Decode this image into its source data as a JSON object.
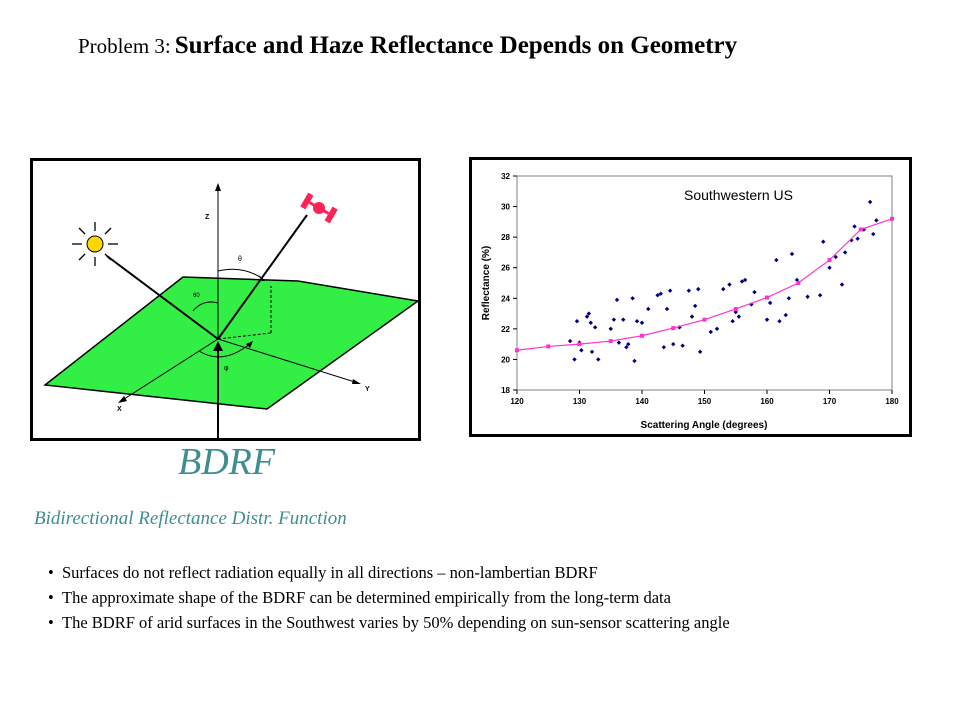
{
  "title": {
    "prefix": "Problem 3:",
    "main": "Surface and Haze Reflectance Depends on Geometry"
  },
  "diagram": {
    "axis_labels": {
      "z": "Z",
      "x": "X",
      "y": "Y"
    },
    "angle_labels": {
      "theta": "θ",
      "theta0": "θ0",
      "phi": "φ"
    },
    "colors": {
      "surface": "#33ee44",
      "sun": "#ffd700",
      "satellite": "#ff2255"
    },
    "icons": [
      "sun-icon",
      "satellite-icon"
    ]
  },
  "bdrf_label": "BDRF",
  "bdrf_subtitle": "Bidirectional Reflectance Distr. Function",
  "bullets": [
    "Surfaces do not reflect radiation equally in all directions – non-lambertian BDRF",
    "The approximate shape of the BDRF can be determined empirically from the long-term data",
    "The BDRF of arid surfaces in the Southwest varies by 50% depending on sun-sensor scattering angle"
  ],
  "chart_data": {
    "type": "scatter",
    "title": "Southwestern US",
    "xlabel": "Scattering Angle (degrees)",
    "ylabel": "Reflectance (%)",
    "xlim": [
      120,
      180
    ],
    "ylim": [
      18,
      32
    ],
    "xticks": [
      120,
      130,
      140,
      150,
      160,
      170,
      180
    ],
    "yticks": [
      18,
      20,
      22,
      24,
      26,
      28,
      30,
      32
    ],
    "grid": false,
    "legend": "none",
    "series": [
      {
        "kind": "scatter",
        "color": "#000080",
        "points": [
          [
            128.5,
            21.2
          ],
          [
            129.2,
            20.0
          ],
          [
            129.6,
            22.5
          ],
          [
            130.0,
            21.1
          ],
          [
            130.3,
            20.6
          ],
          [
            131.2,
            22.8
          ],
          [
            131.5,
            23.0
          ],
          [
            131.8,
            22.4
          ],
          [
            132.0,
            20.5
          ],
          [
            132.5,
            22.1
          ],
          [
            133.0,
            20.0
          ],
          [
            135.0,
            22.0
          ],
          [
            135.5,
            22.6
          ],
          [
            136.0,
            23.9
          ],
          [
            136.3,
            21.1
          ],
          [
            137.0,
            22.6
          ],
          [
            137.5,
            20.8
          ],
          [
            137.8,
            21.0
          ],
          [
            138.5,
            24.0
          ],
          [
            138.8,
            19.9
          ],
          [
            139.2,
            22.5
          ],
          [
            140.0,
            22.4
          ],
          [
            141.0,
            23.3
          ],
          [
            142.5,
            24.2
          ],
          [
            143.0,
            24.3
          ],
          [
            143.5,
            20.8
          ],
          [
            144.0,
            23.3
          ],
          [
            144.5,
            24.5
          ],
          [
            145.0,
            21.0
          ],
          [
            146.0,
            22.1
          ],
          [
            146.5,
            20.9
          ],
          [
            147.5,
            24.5
          ],
          [
            148.0,
            22.8
          ],
          [
            148.5,
            23.5
          ],
          [
            149.0,
            24.6
          ],
          [
            149.3,
            20.5
          ],
          [
            151.0,
            21.8
          ],
          [
            152.0,
            22.0
          ],
          [
            153.0,
            24.6
          ],
          [
            154.0,
            24.9
          ],
          [
            154.5,
            22.5
          ],
          [
            155.0,
            23.1
          ],
          [
            155.5,
            22.8
          ],
          [
            156.0,
            25.1
          ],
          [
            156.5,
            25.2
          ],
          [
            157.5,
            23.6
          ],
          [
            158.0,
            24.4
          ],
          [
            160.0,
            22.6
          ],
          [
            160.5,
            23.7
          ],
          [
            161.5,
            26.5
          ],
          [
            162.0,
            22.5
          ],
          [
            163.0,
            22.9
          ],
          [
            163.5,
            24.0
          ],
          [
            164.0,
            26.9
          ],
          [
            164.8,
            25.2
          ],
          [
            166.5,
            24.1
          ],
          [
            168.5,
            24.2
          ],
          [
            169.0,
            27.7
          ],
          [
            170.0,
            26.0
          ],
          [
            171.0,
            26.7
          ],
          [
            172.0,
            24.9
          ],
          [
            172.5,
            27.0
          ],
          [
            173.5,
            27.8
          ],
          [
            174.0,
            28.7
          ],
          [
            174.5,
            27.9
          ],
          [
            175.5,
            28.5
          ],
          [
            176.5,
            30.3
          ],
          [
            177.0,
            28.2
          ],
          [
            177.5,
            29.1
          ]
        ]
      },
      {
        "kind": "line",
        "color": "#ff33cc",
        "points": [
          [
            120,
            20.6
          ],
          [
            125,
            20.85
          ],
          [
            130,
            21.0
          ],
          [
            135,
            21.2
          ],
          [
            140,
            21.55
          ],
          [
            145,
            22.05
          ],
          [
            150,
            22.6
          ],
          [
            155,
            23.3
          ],
          [
            160,
            24.05
          ],
          [
            165,
            25.0
          ],
          [
            170,
            26.5
          ],
          [
            175,
            28.5
          ],
          [
            180,
            29.2
          ]
        ]
      }
    ]
  }
}
